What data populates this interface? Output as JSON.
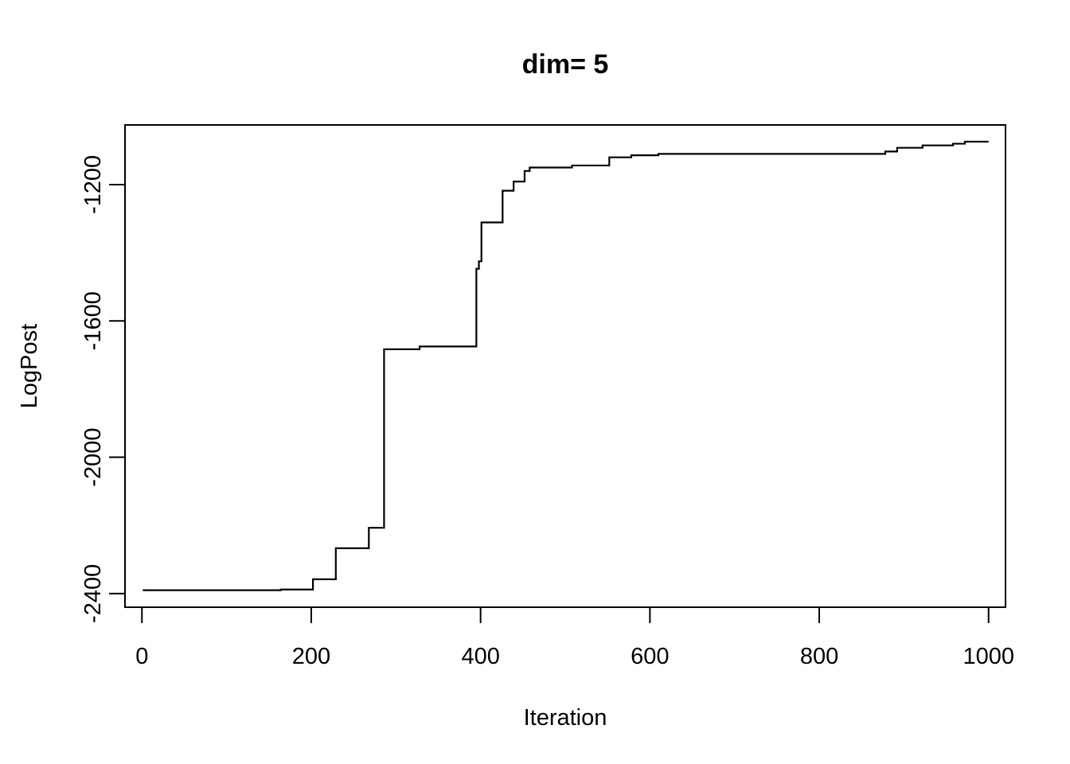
{
  "chart_data": {
    "type": "line",
    "title": "dim= 5",
    "xlabel": "Iteration",
    "ylabel": "LogPost",
    "xlim": [
      -20,
      1020
    ],
    "ylim": [
      -2440,
      -1025
    ],
    "x_ticks": [
      0,
      200,
      400,
      600,
      800,
      1000
    ],
    "y_ticks": [
      -2400,
      -2000,
      -1600,
      -1200
    ],
    "x_tick_labels": [
      "0",
      "200",
      "400",
      "600",
      "800",
      "1000"
    ],
    "y_tick_labels": [
      "-2400",
      "-2000",
      "-1600",
      "-1200"
    ],
    "grid": false,
    "line_color": "#000000",
    "series": [
      {
        "step": true,
        "points": [
          [
            1,
            -2390
          ],
          [
            164,
            -2390
          ],
          [
            164,
            -2388
          ],
          [
            202,
            -2388
          ],
          [
            202,
            -2358
          ],
          [
            229,
            -2358
          ],
          [
            229,
            -2267
          ],
          [
            268,
            -2267
          ],
          [
            268,
            -2207
          ],
          [
            286,
            -2207
          ],
          [
            286,
            -1683
          ],
          [
            328,
            -1683
          ],
          [
            328,
            -1675
          ],
          [
            395,
            -1675
          ],
          [
            395,
            -1447
          ],
          [
            398,
            -1447
          ],
          [
            398,
            -1425
          ],
          [
            401,
            -1425
          ],
          [
            401,
            -1311
          ],
          [
            426,
            -1311
          ],
          [
            426,
            -1218
          ],
          [
            439,
            -1218
          ],
          [
            439,
            -1191
          ],
          [
            452,
            -1191
          ],
          [
            452,
            -1160
          ],
          [
            458,
            -1160
          ],
          [
            458,
            -1150
          ],
          [
            508,
            -1150
          ],
          [
            508,
            -1144
          ],
          [
            552,
            -1144
          ],
          [
            552,
            -1120
          ],
          [
            578,
            -1120
          ],
          [
            578,
            -1114
          ],
          [
            610,
            -1114
          ],
          [
            610,
            -1110
          ],
          [
            878,
            -1110
          ],
          [
            878,
            -1103
          ],
          [
            892,
            -1103
          ],
          [
            892,
            -1092
          ],
          [
            922,
            -1092
          ],
          [
            922,
            -1085
          ],
          [
            958,
            -1085
          ],
          [
            958,
            -1080
          ],
          [
            972,
            -1080
          ],
          [
            972,
            -1074
          ],
          [
            1000,
            -1074
          ]
        ]
      }
    ]
  }
}
